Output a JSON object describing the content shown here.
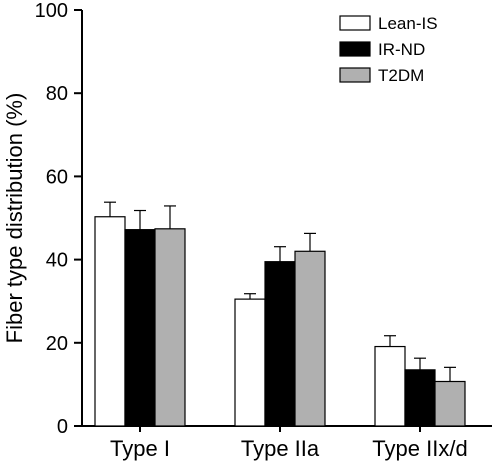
{
  "chart_data": {
    "type": "bar",
    "title": "",
    "xlabel": "",
    "ylabel": "Fiber type distribution (%)",
    "ylim": [
      0,
      100
    ],
    "yticks": [
      0,
      20,
      40,
      60,
      80,
      100
    ],
    "categories": [
      "Type I",
      "Type IIa",
      "Type IIx/d"
    ],
    "series": [
      {
        "name": "Lean-IS",
        "color": "#ffffff",
        "values": [
          50.3,
          30.5,
          19.1
        ],
        "errors": [
          3.5,
          1.3,
          2.6
        ]
      },
      {
        "name": "IR-ND",
        "color": "#000000",
        "values": [
          47.2,
          39.5,
          13.5
        ],
        "errors": [
          4.6,
          3.6,
          2.8
        ]
      },
      {
        "name": "T2DM",
        "color": "#b0b0b0",
        "values": [
          47.4,
          42.0,
          10.7
        ],
        "errors": [
          5.5,
          4.3,
          3.4
        ]
      }
    ],
    "legend_position": "top-right",
    "grid": false
  }
}
